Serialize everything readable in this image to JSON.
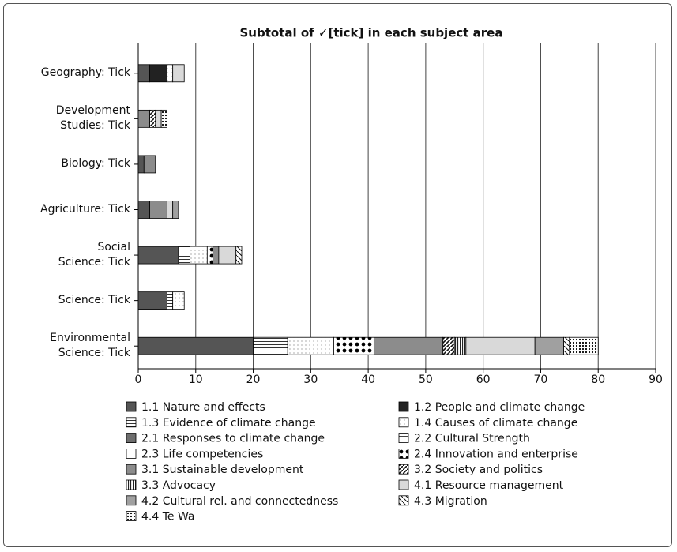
{
  "chart_data": {
    "type": "stacked_bar_horizontal",
    "title": "Subtotal of ✓[tick] in each subject area",
    "categories": [
      "Geography: Tick",
      "Development\nStudies: Tick",
      "Biology: Tick",
      "Agriculture: Tick",
      "Social\nScience: Tick",
      "Science: Tick",
      "Environmental\nScience: Tick"
    ],
    "xlim": [
      0,
      90
    ],
    "xticks": [
      0,
      10,
      20,
      30,
      40,
      50,
      60,
      70,
      80,
      90
    ],
    "grid": true,
    "series": [
      {
        "name": "1.1 Nature and effects",
        "color": "#555555",
        "pattern": "solid",
        "values": [
          2,
          0,
          1,
          2,
          7,
          5,
          20
        ]
      },
      {
        "name": "1.2 People and climate change",
        "color": "#222222",
        "pattern": "solid",
        "values": [
          3,
          0,
          0,
          0,
          0,
          0,
          0
        ]
      },
      {
        "name": "1.3 Evidence of climate change",
        "color": "#333333",
        "pattern": "hlines",
        "values": [
          0,
          0,
          0,
          0,
          2,
          1,
          6
        ]
      },
      {
        "name": "1.4 Causes of climate change",
        "color": "#777777",
        "pattern": "sparsedots",
        "values": [
          1,
          0,
          0,
          0,
          3,
          2,
          8
        ]
      },
      {
        "name": "2.1 Responses to climate change",
        "color": "#6e6e6e",
        "pattern": "solid",
        "values": [
          0,
          0,
          0,
          0,
          0,
          0,
          0
        ]
      },
      {
        "name": "2.2 Cultural Strength",
        "color": "#444444",
        "pattern": "hlineswide",
        "values": [
          0,
          0,
          0,
          0,
          0,
          0,
          0
        ]
      },
      {
        "name": "2.3 Life competencies",
        "color": "#ffffff",
        "pattern": "solid",
        "values": [
          0,
          0,
          0,
          0,
          0,
          0,
          0
        ]
      },
      {
        "name": "2.4 Innovation and enterprise",
        "color": "#000000",
        "pattern": "bigdots",
        "values": [
          0,
          0,
          0,
          0,
          1,
          0,
          7
        ]
      },
      {
        "name": "3.1 Sustainable development",
        "color": "#8c8c8c",
        "pattern": "solid",
        "values": [
          0,
          2,
          2,
          3,
          1,
          0,
          12
        ]
      },
      {
        "name": "3.2 Society and politics",
        "color": "#111111",
        "pattern": "diag",
        "values": [
          0,
          1,
          0,
          0,
          0,
          0,
          2
        ]
      },
      {
        "name": "3.3 Advocacy",
        "color": "#222222",
        "pattern": "vlines",
        "values": [
          0,
          0,
          0,
          0,
          0,
          0,
          2
        ]
      },
      {
        "name": "4.1 Resource management",
        "color": "#d9d9d9",
        "pattern": "solid",
        "values": [
          2,
          1,
          0,
          1,
          3,
          0,
          12
        ]
      },
      {
        "name": "4.2 Cultural rel. and connectedness",
        "color": "#a0a0a0",
        "pattern": "solid",
        "values": [
          0,
          0,
          0,
          1,
          0,
          0,
          5
        ]
      },
      {
        "name": "4.3 Migration",
        "color": "#111111",
        "pattern": "halfdiag",
        "values": [
          0,
          0,
          0,
          0,
          1,
          0,
          1
        ]
      },
      {
        "name": "4.4 Te Wa",
        "color": "#000000",
        "pattern": "densedots",
        "values": [
          0,
          1,
          0,
          0,
          0,
          0,
          5
        ]
      }
    ]
  }
}
